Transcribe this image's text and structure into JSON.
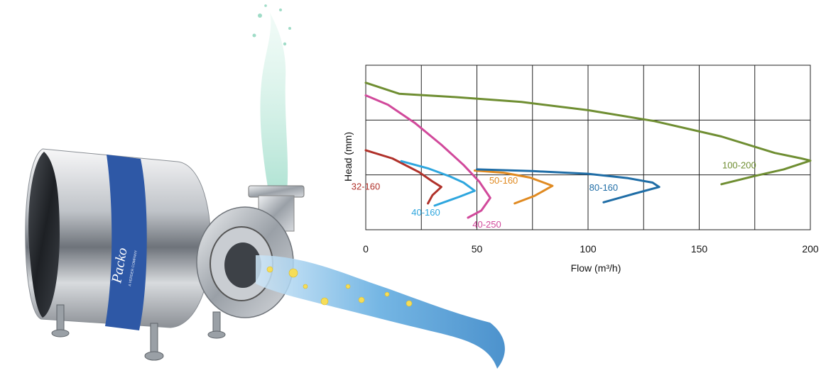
{
  "brand": {
    "logo_text": "Packo",
    "logo_subtext": "A VERDER COMPANY"
  },
  "illustration": {
    "subject": "stainless steel centrifugal pump with water jets"
  },
  "chart_data": {
    "type": "line",
    "title": "",
    "xlabel": "Flow (m³/h)",
    "ylabel": "Head (mm)",
    "xlim": [
      0,
      200
    ],
    "x_ticks": [
      "0",
      "50",
      "100",
      "150",
      "200"
    ],
    "ylim": [
      0,
      3
    ],
    "y_ticks": [],
    "grid": true,
    "legend": "inline labels near curves",
    "series": [
      {
        "name": "32-160",
        "color": "#b0312a",
        "points": [
          [
            0,
            1.45
          ],
          [
            12,
            1.3
          ],
          [
            24,
            1.05
          ],
          [
            30,
            0.88
          ],
          [
            34,
            0.78
          ],
          [
            30,
            0.63
          ],
          [
            28,
            0.48
          ]
        ]
      },
      {
        "name": "40-160",
        "color": "#2ea6de",
        "points": [
          [
            16,
            1.25
          ],
          [
            28,
            1.12
          ],
          [
            38,
            0.97
          ],
          [
            44,
            0.86
          ],
          [
            49,
            0.71
          ],
          [
            42,
            0.6
          ],
          [
            31,
            0.44
          ]
        ]
      },
      {
        "name": "40-250",
        "color": "#d1499b",
        "points": [
          [
            0,
            2.45
          ],
          [
            10,
            2.28
          ],
          [
            22,
            1.95
          ],
          [
            34,
            1.55
          ],
          [
            44,
            1.18
          ],
          [
            51,
            0.88
          ],
          [
            56,
            0.58
          ],
          [
            52,
            0.35
          ],
          [
            46,
            0.22
          ]
        ]
      },
      {
        "name": "50-160",
        "color": "#e08a21",
        "points": [
          [
            49,
            1.08
          ],
          [
            62,
            1.04
          ],
          [
            74,
            0.95
          ],
          [
            84,
            0.8
          ],
          [
            76,
            0.62
          ],
          [
            67,
            0.48
          ]
        ]
      },
      {
        "name": "80-160",
        "color": "#1f6da6",
        "points": [
          [
            50,
            1.1
          ],
          [
            75,
            1.07
          ],
          [
            100,
            1.02
          ],
          [
            118,
            0.94
          ],
          [
            129,
            0.86
          ],
          [
            132,
            0.78
          ],
          [
            121,
            0.66
          ],
          [
            107,
            0.5
          ]
        ]
      },
      {
        "name": "100-200",
        "color": "#6f8e32",
        "points": [
          [
            0,
            2.68
          ],
          [
            15,
            2.48
          ],
          [
            40,
            2.42
          ],
          [
            70,
            2.33
          ],
          [
            100,
            2.18
          ],
          [
            130,
            1.98
          ],
          [
            160,
            1.7
          ],
          [
            184,
            1.4
          ],
          [
            196,
            1.3
          ],
          [
            200,
            1.26
          ],
          [
            188,
            1.1
          ],
          [
            175,
            0.98
          ],
          [
            160,
            0.83
          ]
        ]
      }
    ]
  }
}
